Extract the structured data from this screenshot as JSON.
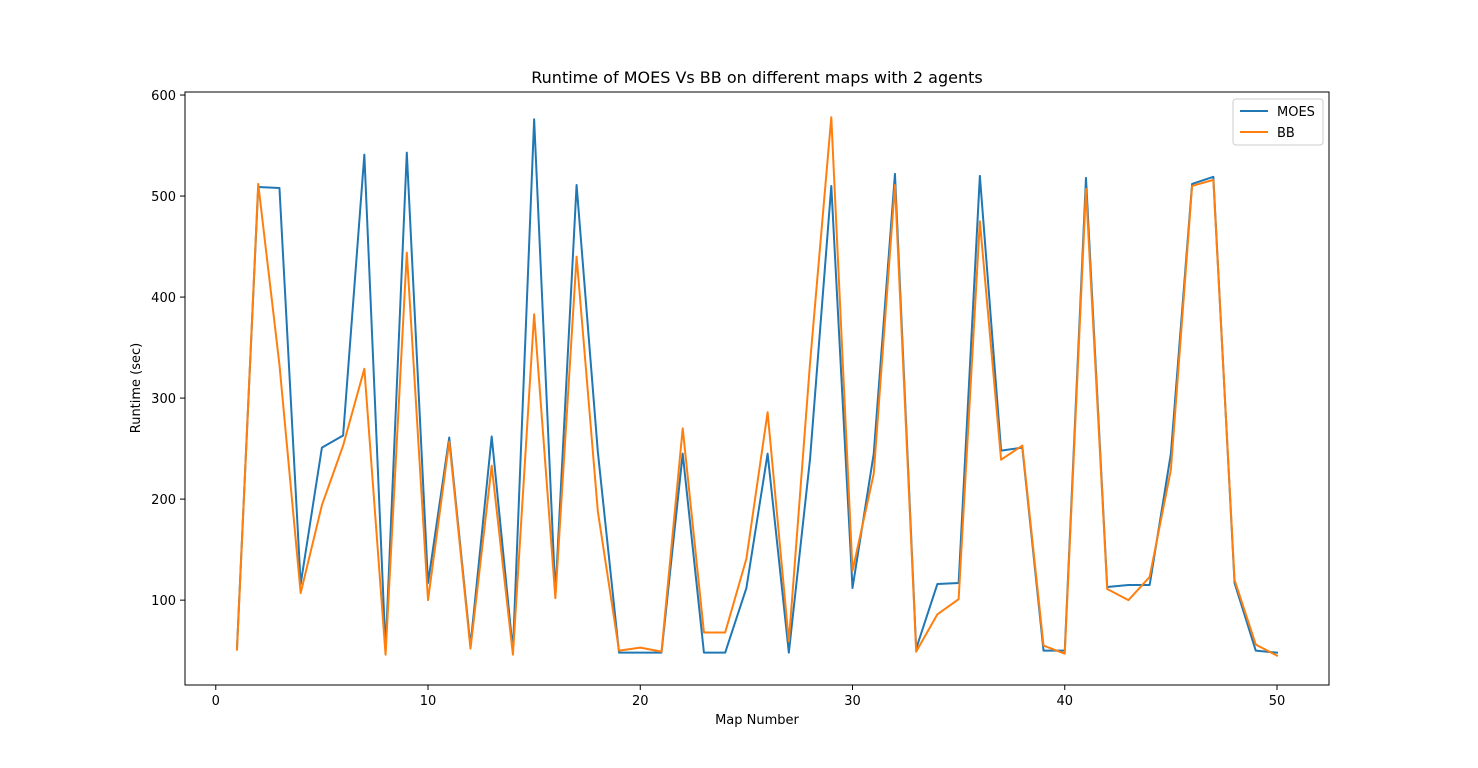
{
  "chart_data": {
    "type": "line",
    "title": "Runtime of MOES Vs BB on different maps with 2 agents",
    "xlabel": "Map Number",
    "ylabel": "Runtime (sec)",
    "xlim": [
      -1.45,
      52.45
    ],
    "ylim": [
      16,
      603
    ],
    "xticks": [
      0,
      10,
      20,
      30,
      40,
      50
    ],
    "yticks": [
      100,
      200,
      300,
      400,
      500,
      600
    ],
    "grid": false,
    "legend_position": "top-right",
    "x": [
      1,
      2,
      3,
      4,
      5,
      6,
      7,
      8,
      9,
      10,
      11,
      12,
      13,
      14,
      15,
      16,
      17,
      18,
      19,
      20,
      21,
      22,
      23,
      24,
      25,
      26,
      27,
      28,
      29,
      30,
      31,
      32,
      33,
      34,
      35,
      36,
      37,
      38,
      39,
      40,
      41,
      42,
      43,
      44,
      45,
      46,
      47,
      48,
      49,
      50
    ],
    "series": [
      {
        "name": "MOES",
        "color": "#1f77b4",
        "values": [
          53,
          509,
          508,
          116,
          251,
          263,
          541,
          51,
          543,
          117,
          261,
          55,
          262,
          50,
          576,
          106,
          511,
          247,
          48,
          48,
          48,
          245,
          48,
          48,
          112,
          245,
          48,
          240,
          510,
          112,
          245,
          522,
          52,
          116,
          117,
          520,
          248,
          251,
          50,
          50,
          518,
          113,
          115,
          115,
          245,
          512,
          519,
          117,
          50,
          48
        ]
      },
      {
        "name": "BB",
        "color": "#ff7f0e",
        "values": [
          51,
          512,
          333,
          107,
          194,
          253,
          329,
          46,
          444,
          100,
          257,
          52,
          233,
          46,
          383,
          102,
          440,
          188,
          50,
          53,
          49,
          270,
          68,
          68,
          141,
          286,
          59,
          335,
          578,
          129,
          225,
          511,
          49,
          86,
          101,
          475,
          239,
          253,
          55,
          47,
          507,
          111,
          100,
          123,
          229,
          510,
          516,
          120,
          56,
          45
        ]
      }
    ]
  }
}
